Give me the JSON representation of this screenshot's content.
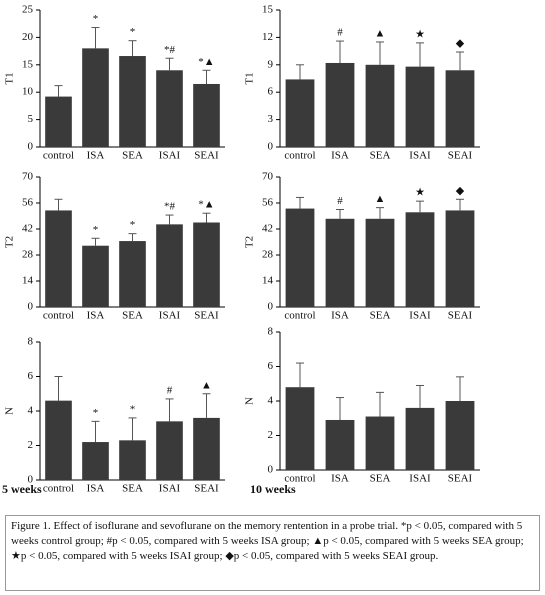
{
  "chart_data": [
    {
      "type": "bar",
      "ylabel": "T1",
      "categories": [
        "control",
        "ISA",
        "SEA",
        "ISAI",
        "SEAI"
      ],
      "values": [
        9.2,
        18,
        16.6,
        14,
        11.5
      ],
      "error": [
        2,
        3.8,
        2.8,
        2.2,
        2.5
      ],
      "annotations": [
        null,
        "*",
        "*",
        "*#",
        "*▲"
      ],
      "color": "#3a3a3a",
      "ylim": [
        0,
        25
      ],
      "yticks": [
        0,
        5,
        10,
        15,
        20,
        25
      ],
      "grid": false
    },
    {
      "type": "bar",
      "ylabel": "T1",
      "categories": [
        "control",
        "ISA",
        "SEA",
        "ISAI",
        "SEAI"
      ],
      "values": [
        7.4,
        9.2,
        9.0,
        8.8,
        8.4
      ],
      "error": [
        1.6,
        2.4,
        2.5,
        2.6,
        2.0
      ],
      "annotations": [
        null,
        "#",
        "▲",
        "★",
        "◆"
      ],
      "color": "#3a3a3a",
      "ylim": [
        0,
        15
      ],
      "yticks": [
        0,
        3,
        6,
        9,
        12,
        15
      ],
      "grid": false
    },
    {
      "type": "bar",
      "ylabel": "T2",
      "categories": [
        "control",
        "ISA",
        "SEA",
        "ISAI",
        "SEAI"
      ],
      "values": [
        52,
        33,
        35.5,
        44.5,
        45.5
      ],
      "error": [
        6,
        4,
        4,
        5,
        5
      ],
      "annotations": [
        null,
        "*",
        "*",
        "*#",
        "*▲"
      ],
      "color": "#3a3a3a",
      "ylim": [
        0,
        70
      ],
      "yticks": [
        0,
        14,
        28,
        42,
        56,
        70
      ],
      "grid": false
    },
    {
      "type": "bar",
      "ylabel": "T2",
      "categories": [
        "control",
        "ISA",
        "SEA",
        "ISAI",
        "SEAI"
      ],
      "values": [
        53,
        47.5,
        47.5,
        51,
        52
      ],
      "error": [
        6,
        5,
        6,
        6,
        6
      ],
      "annotations": [
        null,
        "#",
        "▲",
        "★",
        "◆"
      ],
      "color": "#3a3a3a",
      "ylim": [
        0,
        70
      ],
      "yticks": [
        0,
        14,
        28,
        42,
        56,
        70
      ],
      "grid": false
    },
    {
      "type": "bar",
      "ylabel": "N",
      "xlabel": "5 weeks",
      "categories": [
        "control",
        "ISA",
        "SEA",
        "ISAI",
        "SEAI"
      ],
      "values": [
        4.6,
        2.2,
        2.3,
        3.4,
        3.6
      ],
      "error": [
        1.4,
        1.2,
        1.3,
        1.3,
        1.4
      ],
      "annotations": [
        null,
        "*",
        "*",
        "#",
        "▲"
      ],
      "color": "#3a3a3a",
      "ylim": [
        0,
        8
      ],
      "yticks": [
        0,
        2,
        4,
        6,
        8
      ],
      "grid": false
    },
    {
      "type": "bar",
      "ylabel": "N",
      "xlabel": "10 weeks",
      "categories": [
        "control",
        "ISA",
        "SEA",
        "ISAI",
        "SEAI"
      ],
      "values": [
        4.8,
        2.9,
        3.1,
        3.6,
        4.0
      ],
      "error": [
        1.4,
        1.3,
        1.4,
        1.3,
        1.4
      ],
      "annotations": [
        null,
        null,
        null,
        null,
        null
      ],
      "color": "#3a3a3a",
      "ylim": [
        0,
        8
      ],
      "yticks": [
        0,
        2,
        4,
        6,
        8
      ],
      "grid": false
    }
  ],
  "caption": "Figure 1. Effect of isoflurane and sevoflurane on the memory rentention in a probe trial. *p < 0.05, compared with 5 weeks control group; #p < 0.05, compared with 5 weeks ISA group; ▲p < 0.05, compared with 5 weeks SEA group; ★p < 0.05, compared with 5 weeks ISAI group; ◆p < 0.05, compared with 5 weeks SEAI group."
}
